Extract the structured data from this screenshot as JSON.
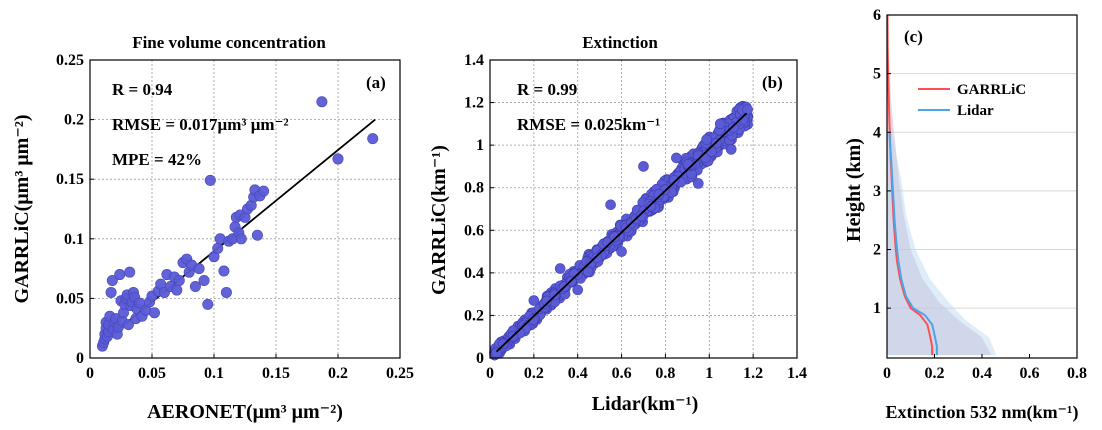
{
  "chart_data": [
    {
      "type": "scatter",
      "panel": "(a)",
      "title": "Fine volume concentration",
      "xlabel": "AERONET(μm³ μm⁻²)",
      "ylabel": "GARRLiC(μm³ μm⁻²)",
      "xlim": [
        0,
        0.25
      ],
      "ylim": [
        0,
        0.25
      ],
      "xticks": [
        "0",
        "0.05",
        "0.1",
        "0.15",
        "0.2",
        "0.25"
      ],
      "yticks": [
        "0",
        "0.05",
        "0.1",
        "0.15",
        "0.2",
        "0.25"
      ],
      "grid": true,
      "marker_color": "#5b5bd6",
      "annotations": [
        "R = 0.94",
        "RMSE = 0.017μm³ μm⁻²",
        "MPE = 42%"
      ],
      "points": [
        [
          0.01,
          0.01
        ],
        [
          0.011,
          0.013
        ],
        [
          0.012,
          0.016
        ],
        [
          0.012,
          0.02
        ],
        [
          0.013,
          0.025
        ],
        [
          0.013,
          0.03
        ],
        [
          0.014,
          0.018
        ],
        [
          0.015,
          0.022
        ],
        [
          0.015,
          0.028
        ],
        [
          0.016,
          0.035
        ],
        [
          0.017,
          0.055
        ],
        [
          0.018,
          0.065
        ],
        [
          0.019,
          0.024
        ],
        [
          0.02,
          0.03
        ],
        [
          0.021,
          0.033
        ],
        [
          0.022,
          0.02
        ],
        [
          0.023,
          0.026
        ],
        [
          0.024,
          0.07
        ],
        [
          0.025,
          0.048
        ],
        [
          0.026,
          0.031
        ],
        [
          0.027,
          0.038
        ],
        [
          0.028,
          0.045
        ],
        [
          0.029,
          0.05
        ],
        [
          0.03,
          0.053
        ],
        [
          0.031,
          0.028
        ],
        [
          0.032,
          0.072
        ],
        [
          0.033,
          0.044
        ],
        [
          0.034,
          0.047
        ],
        [
          0.035,
          0.055
        ],
        [
          0.036,
          0.051
        ],
        [
          0.037,
          0.033
        ],
        [
          0.038,
          0.041
        ],
        [
          0.04,
          0.046
        ],
        [
          0.042,
          0.035
        ],
        [
          0.045,
          0.04
        ],
        [
          0.048,
          0.047
        ],
        [
          0.05,
          0.052
        ],
        [
          0.052,
          0.038
        ],
        [
          0.055,
          0.056
        ],
        [
          0.057,
          0.062
        ],
        [
          0.06,
          0.055
        ],
        [
          0.062,
          0.07
        ],
        [
          0.065,
          0.06
        ],
        [
          0.068,
          0.068
        ],
        [
          0.07,
          0.057
        ],
        [
          0.072,
          0.065
        ],
        [
          0.075,
          0.08
        ],
        [
          0.078,
          0.083
        ],
        [
          0.08,
          0.072
        ],
        [
          0.082,
          0.078
        ],
        [
          0.085,
          0.06
        ],
        [
          0.088,
          0.075
        ],
        [
          0.092,
          0.065
        ],
        [
          0.095,
          0.045
        ],
        [
          0.097,
          0.149
        ],
        [
          0.1,
          0.085
        ],
        [
          0.103,
          0.092
        ],
        [
          0.105,
          0.1
        ],
        [
          0.108,
          0.073
        ],
        [
          0.11,
          0.055
        ],
        [
          0.112,
          0.098
        ],
        [
          0.115,
          0.1
        ],
        [
          0.117,
          0.11
        ],
        [
          0.118,
          0.118
        ],
        [
          0.12,
          0.105
        ],
        [
          0.121,
          0.12
        ],
        [
          0.122,
          0.1
        ],
        [
          0.125,
          0.118
        ],
        [
          0.127,
          0.125
        ],
        [
          0.13,
          0.128
        ],
        [
          0.132,
          0.135
        ],
        [
          0.133,
          0.141
        ],
        [
          0.135,
          0.103
        ],
        [
          0.137,
          0.136
        ],
        [
          0.14,
          0.14
        ],
        [
          0.187,
          0.215
        ],
        [
          0.2,
          0.167
        ],
        [
          0.228,
          0.184
        ]
      ],
      "fit_line": [
        [
          0.01,
          0.013
        ],
        [
          0.23,
          0.2
        ]
      ]
    },
    {
      "type": "scatter",
      "panel": "(b)",
      "title": "Extinction",
      "xlabel": "Lidar(km⁻¹)",
      "ylabel": "GARRLiC(km⁻¹)",
      "xlim": [
        0,
        1.4
      ],
      "ylim": [
        0,
        1.4
      ],
      "xticks": [
        "0",
        "0.2",
        "0.4",
        "0.6",
        "0.8",
        "1",
        "1.2",
        "1.4"
      ],
      "yticks": [
        "0",
        "0.2",
        "0.4",
        "0.6",
        "0.8",
        "1",
        "1.2",
        "1.4"
      ],
      "grid": true,
      "marker_color": "#5b5bd6",
      "annotations": [
        "R = 0.99",
        "RMSE = 0.025km⁻¹"
      ],
      "cloud": {
        "x_range": [
          0.02,
          1.18
        ],
        "y_spread": 0.07,
        "count": 750,
        "outliers": [
          [
            0.2,
            0.27
          ],
          [
            0.32,
            0.42
          ],
          [
            0.55,
            0.72
          ],
          [
            0.7,
            0.9
          ],
          [
            0.85,
            0.94
          ],
          [
            1.05,
            1.1
          ],
          [
            0.4,
            0.32
          ],
          [
            0.95,
            0.82
          ],
          [
            1.1,
            0.98
          ],
          [
            0.6,
            0.5
          ]
        ]
      },
      "fit_line": [
        [
          0.03,
          0.03
        ],
        [
          1.17,
          1.15
        ]
      ]
    },
    {
      "type": "line",
      "panel": "(c)",
      "title": "",
      "xlabel": "Extinction 532 nm(km⁻¹)",
      "ylabel": "Height (km)",
      "xlim": [
        0,
        0.8
      ],
      "ylim": [
        0.15,
        6
      ],
      "xticks": [
        "0",
        "0.2",
        "0.4",
        "0.6",
        "0.8"
      ],
      "yticks": [
        "1",
        "2",
        "3",
        "4",
        "5",
        "6"
      ],
      "grid": "horizontal",
      "legend": "top-right",
      "series": [
        {
          "name": "GARRLiC",
          "color": "#ff5050",
          "points": [
            [
              0.19,
              0.2
            ],
            [
              0.19,
              0.35
            ],
            [
              0.18,
              0.55
            ],
            [
              0.17,
              0.72
            ],
            [
              0.14,
              0.88
            ],
            [
              0.1,
              1.0
            ],
            [
              0.075,
              1.2
            ],
            [
              0.055,
              1.5
            ],
            [
              0.042,
              1.8
            ],
            [
              0.035,
              2.1
            ],
            [
              0.028,
              2.5
            ],
            [
              0.022,
              3.0
            ],
            [
              0.015,
              3.6
            ],
            [
              0.01,
              4.2
            ],
            [
              0.006,
              4.8
            ],
            [
              0.003,
              5.4
            ],
            [
              0.002,
              6.0
            ]
          ]
        },
        {
          "name": "Lidar",
          "color": "#4ba3e8",
          "points": [
            [
              0.21,
              0.2
            ],
            [
              0.21,
              0.35
            ],
            [
              0.2,
              0.55
            ],
            [
              0.19,
              0.72
            ],
            [
              0.16,
              0.88
            ],
            [
              0.11,
              1.0
            ],
            [
              0.08,
              1.2
            ],
            [
              0.06,
              1.5
            ],
            [
              0.048,
              1.8
            ],
            [
              0.04,
              2.1
            ],
            [
              0.032,
              2.5
            ],
            [
              0.025,
              3.0
            ],
            [
              0.018,
              3.5
            ],
            [
              0.01,
              4.0
            ]
          ]
        }
      ],
      "shading": [
        {
          "name": "GARRLiC-spread",
          "color": "#c8a8c8",
          "upper": [
            [
              0.44,
              0.2
            ],
            [
              0.4,
              0.5
            ],
            [
              0.3,
              0.8
            ],
            [
              0.22,
              1.1
            ],
            [
              0.15,
              1.5
            ],
            [
              0.1,
              2.0
            ],
            [
              0.07,
              2.6
            ],
            [
              0.05,
              3.2
            ],
            [
              0.035,
              3.8
            ],
            [
              0.02,
              4.4
            ],
            [
              0.01,
              5.0
            ],
            [
              0.005,
              5.6
            ],
            [
              0.003,
              6.0
            ]
          ]
        },
        {
          "name": "Lidar-spread",
          "color": "#b8d8f2",
          "upper": [
            [
              0.46,
              0.2
            ],
            [
              0.43,
              0.5
            ],
            [
              0.33,
              0.8
            ],
            [
              0.26,
              1.1
            ],
            [
              0.18,
              1.5
            ],
            [
              0.12,
              2.0
            ],
            [
              0.08,
              2.6
            ],
            [
              0.06,
              3.2
            ],
            [
              0.04,
              3.6
            ],
            [
              0.02,
              4.0
            ]
          ]
        }
      ]
    }
  ],
  "labels": {
    "titleA": "Fine volume concentration",
    "titleB": "Extinction",
    "panelA": "(a)",
    "panelB": "(b)",
    "panelC": "(c)",
    "annA1": "R = 0.94",
    "annA2": "RMSE = 0.017μm³ μm⁻²",
    "annA3": "MPE = 42%",
    "annB1": "R = 0.99",
    "annB2": "RMSE = 0.025km⁻¹",
    "xlabelA": "AERONET(μm³ μm⁻²)",
    "ylabelA": "GARRLiC(μm³ μm⁻²)",
    "xlabelB": "Lidar(km⁻¹)",
    "ylabelB": "GARRLiC(km⁻¹)",
    "xlabelC": "Extinction 532 nm(km⁻¹)",
    "ylabelC": "Height (km)",
    "leg1": "GARRLiC",
    "leg2": "Lidar"
  }
}
